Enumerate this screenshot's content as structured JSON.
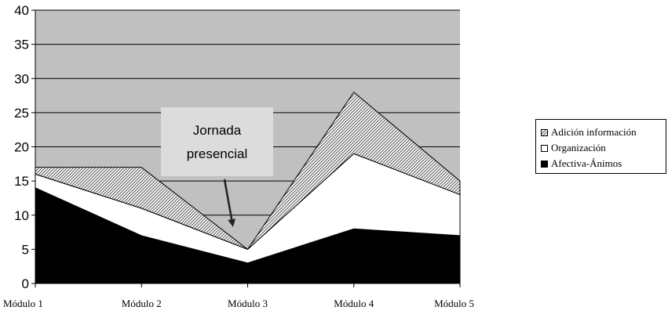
{
  "chart_data": {
    "type": "area",
    "stacked": true,
    "categories": [
      "Módulo 1",
      "Módulo 2",
      "Módulo 3",
      "Módulo 4",
      "Módulo 5"
    ],
    "series": [
      {
        "name": "Afectiva-Ánimos",
        "values": [
          14,
          7,
          3,
          8,
          7
        ],
        "color": "#000000"
      },
      {
        "name": "Organización",
        "values": [
          2,
          4,
          2,
          11,
          6
        ],
        "color": "#ffffff"
      },
      {
        "name": "Adición información",
        "values": [
          1,
          6,
          0,
          9,
          2
        ],
        "color": "#c0c0c0",
        "pattern": "diagonal-hatch"
      }
    ],
    "ylim": [
      0,
      40
    ],
    "yticks": [
      0,
      5,
      10,
      15,
      20,
      25,
      30,
      35,
      40
    ],
    "title": "",
    "xlabel": "",
    "ylabel": "",
    "plot_background": "#c0c0c0",
    "grid": true,
    "legend_position": "right",
    "annotation": {
      "lines": [
        "Jornada",
        "presencial"
      ],
      "points_to": "Módulo 3"
    }
  }
}
